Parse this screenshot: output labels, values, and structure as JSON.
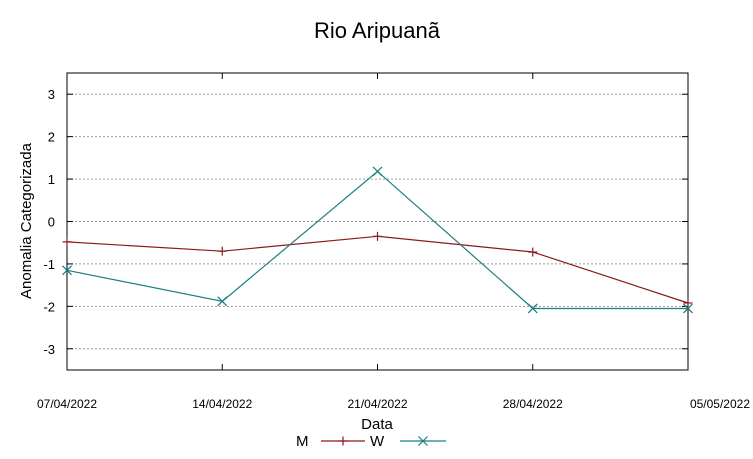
{
  "chart_data": {
    "type": "line",
    "title": "Rio Aripuanã",
    "xlabel": "Data",
    "ylabel": "Anomalia Categorizada",
    "categories": [
      "07/04/2022",
      "14/04/2022",
      "21/04/2022",
      "28/04/2022",
      "05/05/2022"
    ],
    "yticks": [
      -3,
      -2,
      -1,
      0,
      1,
      2,
      3
    ],
    "ylim": [
      -3.5,
      3.5
    ],
    "grid": "horizontal dashed",
    "legend_position": "bottom",
    "series": [
      {
        "name": "M",
        "color": "#8b1a1a",
        "marker": "plus",
        "values": [
          -0.48,
          -0.7,
          -0.35,
          -0.72,
          -1.92
        ]
      },
      {
        "name": "W",
        "color": "#1a7f7f",
        "marker": "x",
        "values": [
          -1.15,
          -1.88,
          1.18,
          -2.05,
          -2.05
        ]
      }
    ]
  }
}
